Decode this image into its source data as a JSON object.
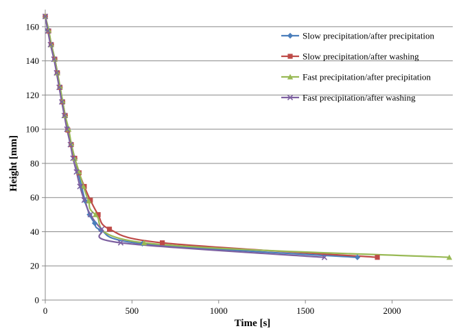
{
  "chart_data": {
    "type": "line",
    "xlabel": "Time [s]",
    "ylabel": "Height [mm]",
    "xlim": [
      0,
      2350
    ],
    "ylim": [
      0,
      170
    ],
    "xticks": [
      0,
      500,
      1000,
      1500,
      2000
    ],
    "yticks": [
      0,
      20,
      40,
      60,
      80,
      100,
      120,
      140,
      160
    ],
    "grid": "horizontal major gridlines",
    "legend_position": "top-right",
    "series": [
      {
        "name": "Slow precipitation/after precipitation",
        "color": "#4a7ebb",
        "marker": "diamond",
        "x": [
          0,
          15,
          35,
          55,
          70,
          85,
          100,
          115,
          130,
          150,
          170,
          190,
          210,
          230,
          255,
          285,
          320,
          560,
          1800
        ],
        "y": [
          166,
          158,
          149.5,
          141,
          133,
          124.5,
          116,
          108,
          100,
          91,
          83,
          74.5,
          66,
          58,
          50,
          45,
          41,
          33,
          25
        ]
      },
      {
        "name": "Slow precipitation/after washing",
        "color": "#be4b48",
        "marker": "square",
        "x": [
          0,
          20,
          35,
          55,
          70,
          85,
          100,
          115,
          130,
          150,
          170,
          195,
          225,
          260,
          305,
          370,
          675,
          1915
        ],
        "y": [
          166,
          157.5,
          149.5,
          141,
          133,
          124.5,
          116,
          108,
          99.5,
          91,
          83,
          74.5,
          66.5,
          58.5,
          50,
          41.5,
          33.5,
          25
        ]
      },
      {
        "name": "Fast precipitation/after precipitation",
        "color": "#98b954",
        "marker": "triangle",
        "x": [
          0,
          20,
          35,
          55,
          70,
          85,
          100,
          115,
          135,
          150,
          170,
          195,
          220,
          250,
          290,
          570,
          2330
        ],
        "y": [
          166,
          158,
          149.5,
          141,
          133,
          125,
          116.5,
          108,
          100,
          91.5,
          83,
          75,
          66.5,
          58,
          50,
          33.5,
          25
        ]
      },
      {
        "name": "Fast precipitation/after washing",
        "color": "#7d60a0",
        "marker": "x",
        "x": [
          0,
          15,
          30,
          50,
          65,
          80,
          95,
          110,
          125,
          145,
          160,
          180,
          200,
          225,
          260,
          325,
          435,
          1610
        ],
        "y": [
          166,
          157.5,
          149.5,
          141,
          133,
          124.5,
          116,
          108,
          100,
          91,
          83,
          75,
          66.5,
          58.5,
          50,
          41.5,
          33.5,
          25
        ]
      }
    ]
  }
}
